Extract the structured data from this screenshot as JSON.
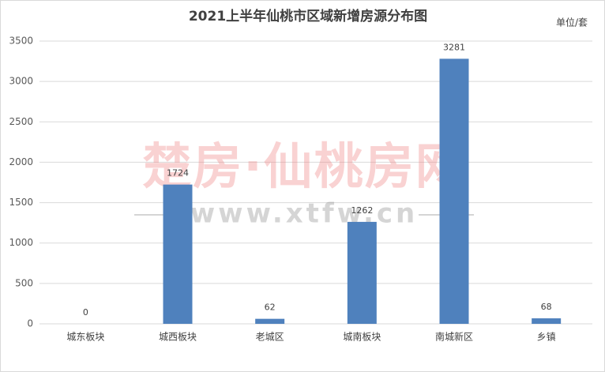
{
  "chart_data": {
    "type": "bar",
    "title": "2021上半年仙桃市区域新增房源分布图",
    "unit_label": "单位/套",
    "categories": [
      "城东板块",
      "城西板块",
      "老城区",
      "城南板块",
      "南城新区",
      "乡镇"
    ],
    "values": [
      0,
      1724,
      62,
      1262,
      3281,
      68
    ],
    "color": "#4f81bd",
    "ylim": [
      0,
      3500
    ],
    "yticks": [
      0,
      500,
      1000,
      1500,
      2000,
      2500,
      3000,
      3500
    ],
    "grid": true,
    "annotations": [
      "楚房·仙桃房网",
      "www.xtfw.cn"
    ]
  }
}
